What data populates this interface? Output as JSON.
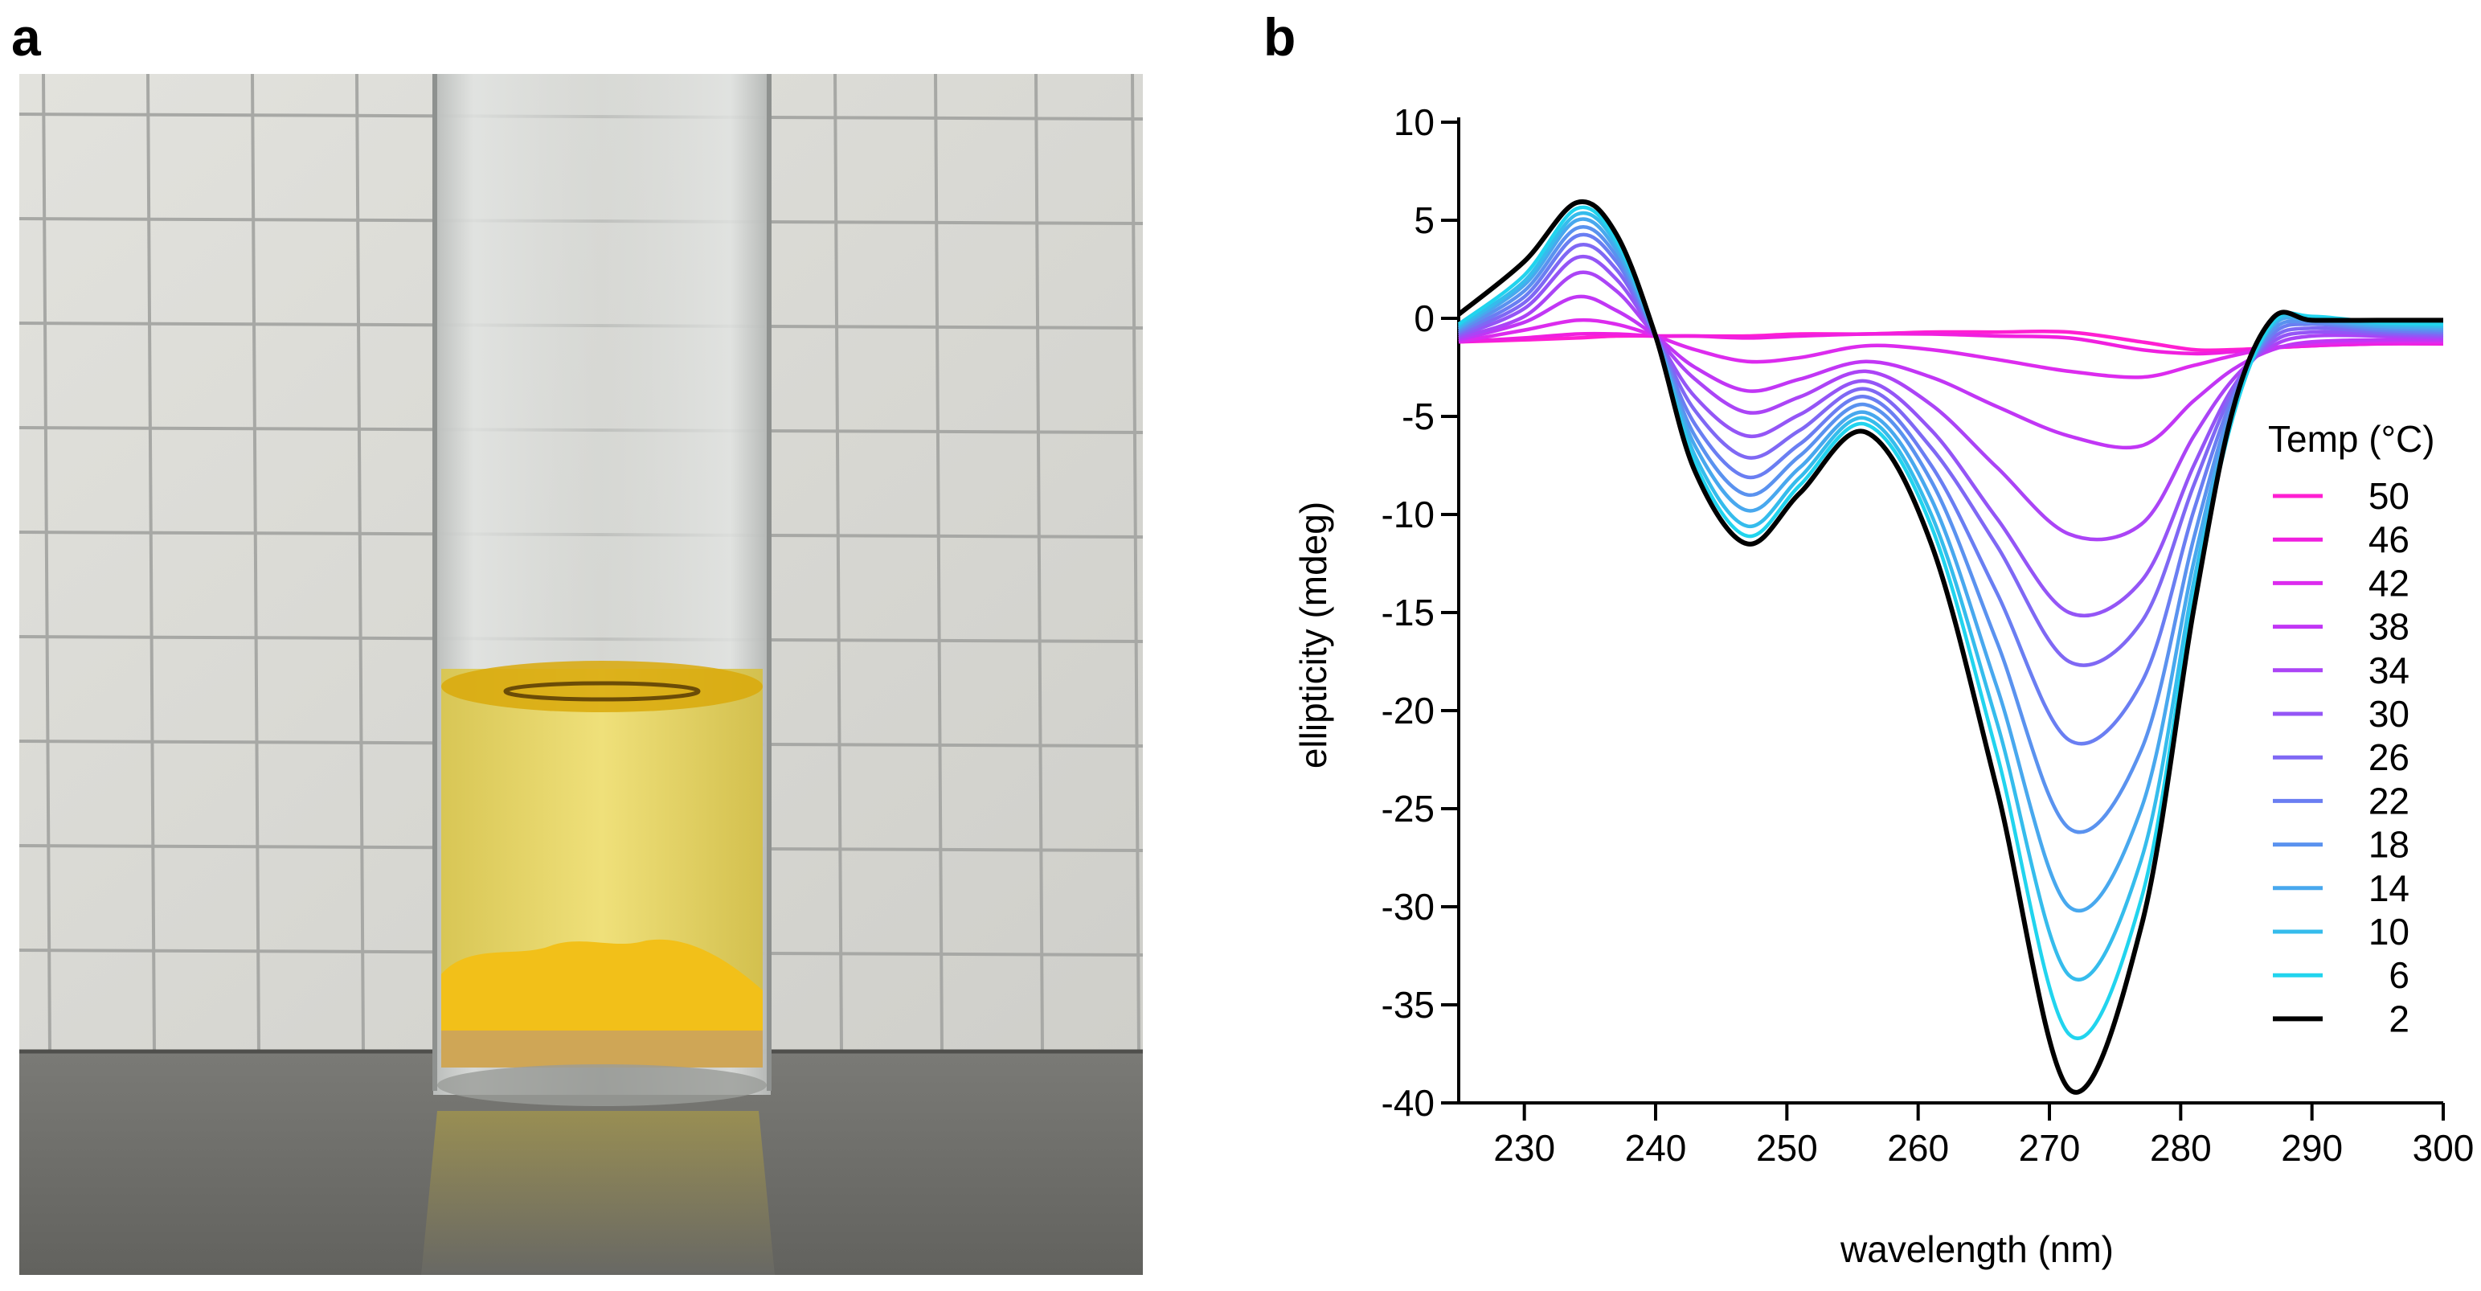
{
  "panels": {
    "a_label": "a",
    "b_label": "b"
  },
  "photo": {
    "subject": "glass vial with yellow liquid and yellow precipitate",
    "colors": {
      "wall": "#d6d6d0",
      "grid": "#a7a8a5",
      "bench": "#6d6d69",
      "liquid": "#e9d96a",
      "precipitate": "#f2c019",
      "meniscus": "#d9a90a",
      "glass": "#cfd2cf"
    }
  },
  "chart_data": {
    "type": "line",
    "title": "",
    "xlabel": "wavelength (nm)",
    "ylabel": "ellipticity (mdeg)",
    "xlim": [
      225,
      300
    ],
    "ylim": [
      -40,
      10
    ],
    "xticks": [
      230,
      240,
      250,
      260,
      270,
      280,
      290,
      300
    ],
    "yticks": [
      10,
      5,
      0,
      -5,
      -10,
      -15,
      -20,
      -25,
      -30,
      -35,
      -40
    ],
    "legend_title": "Temp (°C)",
    "legend_position": "right",
    "x": [
      225,
      230,
      234,
      237,
      240,
      243,
      247,
      251,
      256,
      261,
      266,
      271.5,
      277,
      281,
      284,
      287,
      290,
      295,
      300
    ],
    "series": [
      {
        "name": "50",
        "color": "#ff1fd2",
        "values": [
          -1.2,
          -1.1,
          -1.0,
          -0.9,
          -0.9,
          -0.9,
          -0.9,
          -0.8,
          -0.8,
          -0.7,
          -0.7,
          -0.7,
          -1.2,
          -1.6,
          -1.6,
          -1.5,
          -1.4,
          -1.3,
          -1.3
        ]
      },
      {
        "name": "46",
        "color": "#f01fdf",
        "values": [
          -1.2,
          -1.0,
          -0.8,
          -0.8,
          -0.9,
          -0.9,
          -1.0,
          -0.9,
          -0.8,
          -0.8,
          -0.9,
          -1.0,
          -1.6,
          -1.8,
          -1.7,
          -1.5,
          -1.4,
          -1.3,
          -1.3
        ]
      },
      {
        "name": "42",
        "color": "#dc2bee",
        "values": [
          -1.2,
          -0.6,
          -0.1,
          -0.3,
          -0.9,
          -1.6,
          -2.2,
          -2.0,
          -1.4,
          -1.6,
          -2.1,
          -2.7,
          -3.0,
          -2.4,
          -1.9,
          -1.5,
          -1.3,
          -1.2,
          -1.2
        ]
      },
      {
        "name": "38",
        "color": "#c136f5",
        "values": [
          -1.1,
          -0.2,
          1.1,
          0.4,
          -0.9,
          -2.5,
          -3.7,
          -3.1,
          -2.2,
          -3.0,
          -4.5,
          -6.0,
          -6.5,
          -4.2,
          -2.6,
          -1.6,
          -1.2,
          -1.1,
          -1.1
        ]
      },
      {
        "name": "34",
        "color": "#ab44f6",
        "values": [
          -1.0,
          0.1,
          2.3,
          1.4,
          -0.9,
          -3.1,
          -4.8,
          -4.0,
          -2.7,
          -4.4,
          -7.6,
          -11.0,
          -10.5,
          -6.0,
          -3.1,
          -1.4,
          -0.9,
          -0.9,
          -1.0
        ]
      },
      {
        "name": "30",
        "color": "#9455f6",
        "values": [
          -0.9,
          0.5,
          3.1,
          2.0,
          -0.9,
          -4.0,
          -6.0,
          -4.9,
          -3.2,
          -5.7,
          -10.2,
          -15.0,
          -13.4,
          -7.5,
          -3.5,
          -1.2,
          -0.7,
          -0.8,
          -0.9
        ]
      },
      {
        "name": "26",
        "color": "#7f68f4",
        "values": [
          -0.8,
          0.8,
          3.7,
          2.5,
          -0.9,
          -4.7,
          -7.1,
          -5.7,
          -3.6,
          -6.6,
          -11.6,
          -17.5,
          -15.5,
          -8.5,
          -3.7,
          -1.0,
          -0.5,
          -0.7,
          -0.8
        ]
      },
      {
        "name": "22",
        "color": "#6a7ef2",
        "values": [
          -0.7,
          1.1,
          4.2,
          2.9,
          -0.9,
          -5.4,
          -8.1,
          -6.4,
          -4.0,
          -7.5,
          -14.0,
          -21.5,
          -18.6,
          -9.8,
          -4.0,
          -0.8,
          -0.3,
          -0.6,
          -0.7
        ]
      },
      {
        "name": "18",
        "color": "#5a92ef",
        "values": [
          -0.6,
          1.4,
          4.6,
          3.2,
          -0.9,
          -6.0,
          -9.0,
          -7.0,
          -4.4,
          -8.3,
          -16.5,
          -26.0,
          -22.0,
          -11.2,
          -4.3,
          -0.6,
          -0.2,
          -0.5,
          -0.6
        ]
      },
      {
        "name": "14",
        "color": "#48a8ee",
        "values": [
          -0.5,
          1.7,
          5.0,
          3.5,
          -0.9,
          -6.5,
          -9.8,
          -7.6,
          -4.8,
          -9.2,
          -18.8,
          -30.0,
          -25.0,
          -12.4,
          -4.6,
          -0.4,
          -0.1,
          -0.4,
          -0.5
        ]
      },
      {
        "name": "10",
        "color": "#35bcec",
        "values": [
          -0.4,
          1.9,
          5.3,
          3.8,
          -0.9,
          -7.0,
          -10.6,
          -8.1,
          -5.1,
          -10.0,
          -20.6,
          -33.5,
          -27.6,
          -13.4,
          -4.8,
          -0.3,
          0.0,
          -0.3,
          -0.4
        ]
      },
      {
        "name": "6",
        "color": "#21d4ee",
        "values": [
          -0.3,
          2.2,
          5.6,
          4.0,
          -0.9,
          -7.4,
          -11.1,
          -8.5,
          -5.4,
          -10.6,
          -22.2,
          -36.5,
          -29.6,
          -14.2,
          -5.0,
          -0.2,
          0.1,
          -0.2,
          -0.3
        ]
      },
      {
        "name": "2",
        "color": "#000000",
        "values": [
          0.2,
          2.9,
          5.9,
          4.3,
          -0.9,
          -7.8,
          -11.5,
          -8.9,
          -5.8,
          -11.5,
          -24.0,
          -39.3,
          -31.0,
          -14.8,
          -4.6,
          0.0,
          -0.1,
          -0.1,
          -0.1
        ]
      }
    ]
  }
}
